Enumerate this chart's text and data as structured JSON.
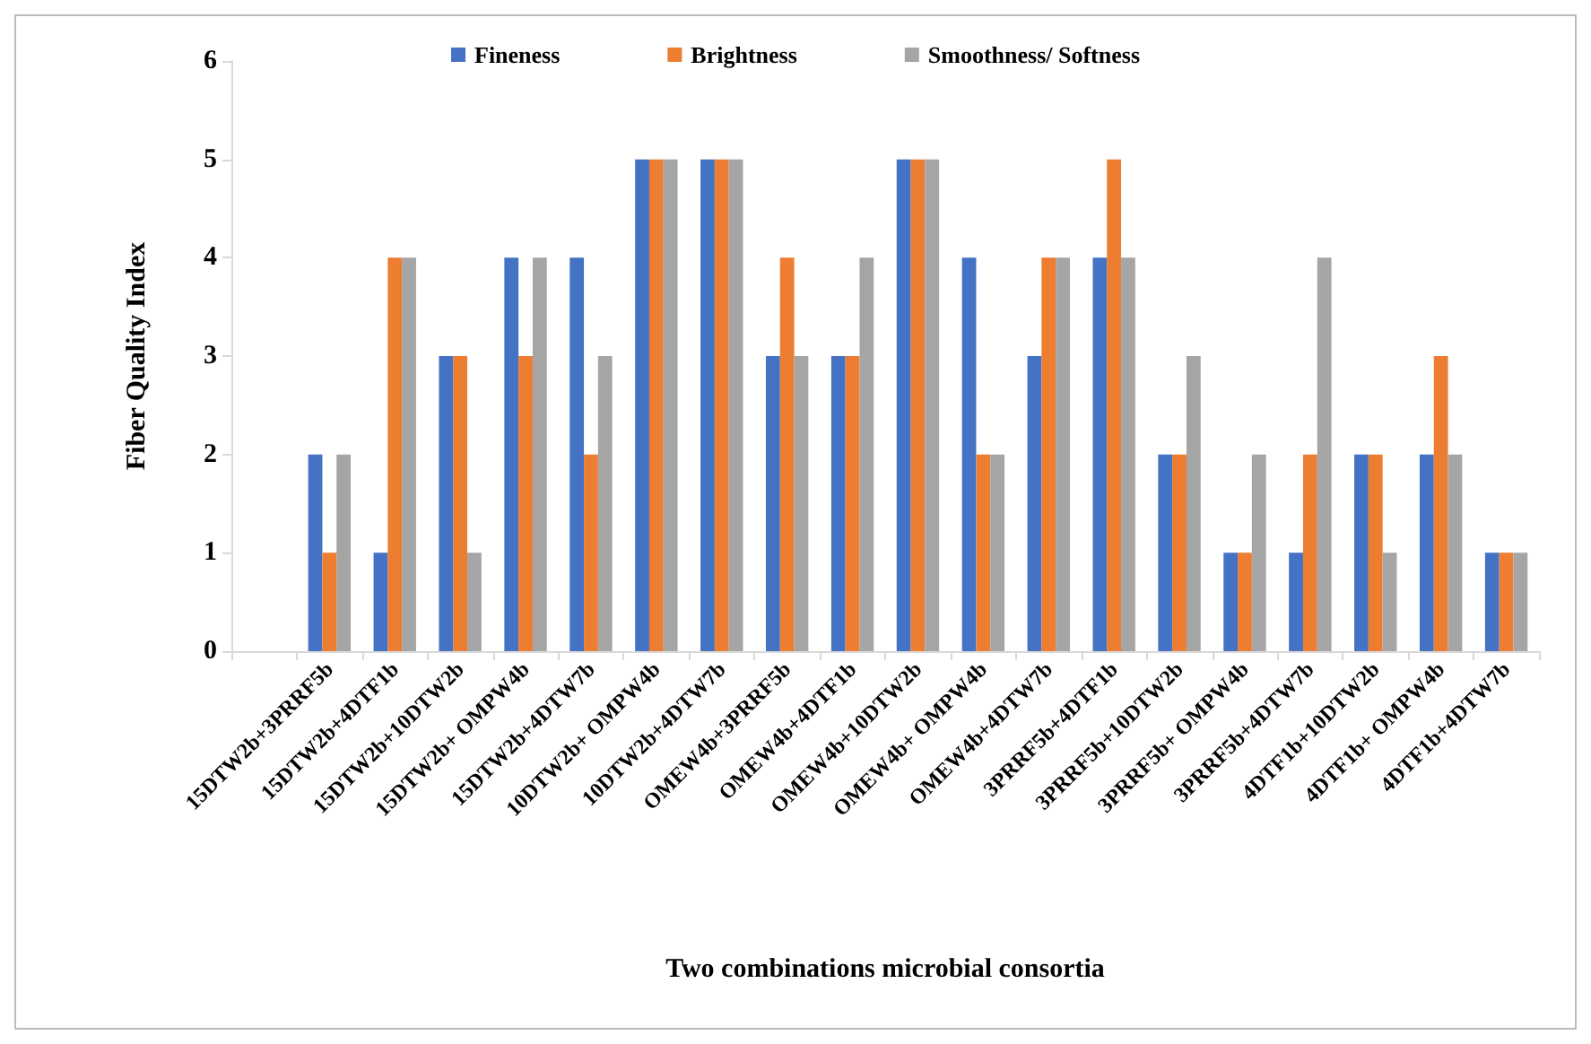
{
  "chart_data": {
    "type": "bar",
    "xlabel": "Two combinations microbial consortia",
    "ylabel": "Fiber Quality Index",
    "categories": [
      null,
      "15DTW2b+3PRRF5b",
      "15DTW2b+4DTF1b",
      "15DTW2b+10DTW2b",
      "15DTW2b+ OMPW4b",
      "15DTW2b+4DTW7b",
      "10DTW2b+ OMPW4b",
      "10DTW2b+4DTW7b",
      "OMEW4b+3PRRF5b",
      "OMEW4b+4DTF1b",
      "OMEW4b+10DTW2b",
      "OMEW4b+ OMPW4b",
      "OMEW4b+4DTW7b",
      "3PRRF5b+4DTF1b",
      "3PRRF5b+10DTW2b",
      "3PRRF5b+ OMPW4b",
      "3PRRF5b+4DTW7b",
      "4DTF1b+10DTW2b",
      "4DTF1b+ OMPW4b",
      "4DTF1b+4DTW7b"
    ],
    "series": [
      {
        "name": "Fineness",
        "color": "#4472c4",
        "values": [
          null,
          2,
          1,
          3,
          4,
          4,
          5,
          5,
          3,
          3,
          5,
          4,
          3,
          4,
          2,
          1,
          1,
          2,
          2,
          1
        ]
      },
      {
        "name": "Brightness",
        "color": "#ed7d31",
        "values": [
          null,
          1,
          4,
          3,
          3,
          2,
          5,
          5,
          4,
          3,
          5,
          2,
          4,
          5,
          2,
          1,
          2,
          2,
          3,
          1
        ]
      },
      {
        "name": "Smoothness/ Softness",
        "color": "#a5a5a5",
        "values": [
          null,
          2,
          4,
          1,
          4,
          3,
          5,
          5,
          3,
          4,
          5,
          2,
          4,
          4,
          3,
          2,
          4,
          1,
          2,
          1
        ]
      }
    ],
    "ylim": [
      0,
      6
    ],
    "yticks": [
      0,
      1,
      2,
      3,
      4,
      5,
      6
    ],
    "grid": false,
    "legend": "top"
  }
}
